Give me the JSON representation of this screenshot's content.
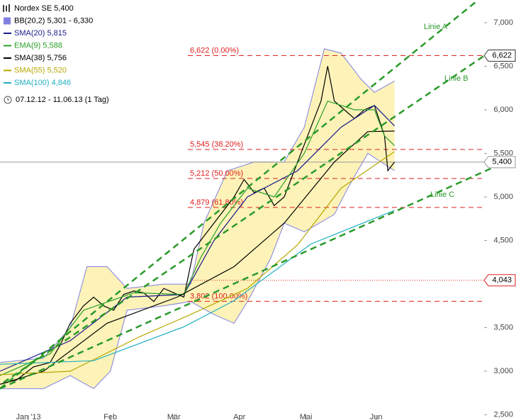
{
  "chart_data": {
    "type": "stock",
    "xlim": [
      0,
      145
    ],
    "ylim": [
      2440,
      7260
    ],
    "xticks": [
      {
        "value": 8.5,
        "label": "Jan '13"
      },
      {
        "value": 33,
        "label": "Feb"
      },
      {
        "value": 52,
        "label": "Mär"
      },
      {
        "value": 71.6,
        "label": "Apr"
      },
      {
        "value": 91.5,
        "label": "Mai"
      },
      {
        "value": 112.5,
        "label": "Jun"
      }
    ],
    "yticks": [
      {
        "value": 7000,
        "label": "7,000"
      },
      {
        "value": 6500,
        "label": "6,500"
      },
      {
        "value": 6000,
        "label": "6,000"
      },
      {
        "value": 5500,
        "label": "5,500"
      },
      {
        "value": 5000,
        "label": "5,000"
      },
      {
        "value": 4500,
        "label": "4,500"
      },
      {
        "value": 3500,
        "label": "3,500"
      },
      {
        "value": 3000,
        "label": "3,000"
      },
      {
        "value": 2500,
        "label": "2,500"
      }
    ],
    "date_range": "07.12.12 - 11.06.13 (1 Tag)",
    "series": [
      {
        "name": "Nordex SE 5,400",
        "kind": "price",
        "color": "#000000",
        "x": [
          0,
          5,
          10,
          15,
          18,
          21,
          25,
          28,
          31,
          34,
          37,
          40,
          43,
          46,
          49,
          52,
          55,
          58,
          61,
          64,
          67,
          70,
          73,
          76,
          79,
          82,
          85,
          88,
          91,
          94,
          96,
          98,
          100,
          103,
          106,
          109,
          112,
          115,
          116,
          118
        ],
        "values": [
          2850,
          2900,
          3050,
          3100,
          3300,
          3550,
          3750,
          3850,
          3750,
          3700,
          3880,
          3920,
          3900,
          3800,
          3950,
          3900,
          3850,
          4400,
          4550,
          4700,
          4850,
          5000,
          5200,
          5050,
          5100,
          4900,
          5000,
          5300,
          5600,
          5900,
          6100,
          6500,
          6100,
          6000,
          5900,
          6000,
          6050,
          5700,
          5300,
          5400
        ]
      },
      {
        "name": "BB(20,2) 5,301 - 6,330",
        "kind": "band",
        "color": "#8080e0",
        "fill": "#fdf3b8",
        "upper_x": [
          0,
          13,
          21,
          26,
          32,
          38,
          49,
          57,
          61,
          68,
          76,
          85,
          91,
          97,
          102,
          108,
          112,
          118
        ],
        "upper": [
          3100,
          3150,
          3500,
          4200,
          4200,
          3950,
          4000,
          4000,
          4700,
          5300,
          5400,
          5400,
          5800,
          6700,
          6650,
          6350,
          6200,
          6330
        ],
        "lower_x": [
          0,
          13,
          21,
          28,
          33,
          38,
          49,
          57,
          64,
          70,
          74,
          81,
          85,
          91,
          100,
          104,
          110,
          118
        ],
        "lower": [
          2800,
          2800,
          2950,
          2800,
          3000,
          3700,
          3750,
          3800,
          3650,
          3550,
          3800,
          4300,
          4700,
          4600,
          4800,
          5100,
          5500,
          5301
        ]
      },
      {
        "name": "SMA(20) 5,815",
        "kind": "line",
        "color": "#1a1a8c",
        "x": [
          0,
          21,
          38,
          55,
          64,
          74,
          89,
          102,
          112,
          118
        ],
        "values": [
          3000,
          3350,
          3850,
          3880,
          4500,
          5000,
          5300,
          5800,
          6050,
          5815
        ]
      },
      {
        "name": "EMA(9) 5,588",
        "kind": "line",
        "color": "#2aa02a",
        "x": [
          0,
          15,
          25,
          40,
          55,
          60,
          66,
          74,
          82,
          91,
          98,
          106,
          112,
          115,
          118
        ],
        "values": [
          2950,
          3200,
          3700,
          3900,
          3880,
          4300,
          4700,
          5100,
          5000,
          5500,
          6100,
          6000,
          6000,
          5700,
          5588
        ]
      },
      {
        "name": "SMA(38) 5,756",
        "kind": "line",
        "color": "#000000",
        "x": [
          0,
          13,
          32,
          53,
          70,
          85,
          100,
          110,
          118
        ],
        "values": [
          2850,
          3000,
          3550,
          3850,
          4200,
          4700,
          5400,
          5750,
          5756
        ]
      },
      {
        "name": "SMA(55) 5,520",
        "kind": "line",
        "color": "#b5a800",
        "x": [
          0,
          21,
          42,
          57,
          74,
          89,
          102,
          118
        ],
        "values": [
          2960,
          3000,
          3400,
          3650,
          3950,
          4450,
          5100,
          5520
        ]
      },
      {
        "name": "SMA(100) 4,846",
        "kind": "line",
        "color": "#20b0c0",
        "x": [
          0,
          28,
          55,
          70,
          93,
          118
        ],
        "values": [
          3080,
          3120,
          3510,
          3810,
          4460,
          4846
        ]
      },
      {
        "name": "Linie A",
        "kind": "trend",
        "color": "#2a9a2a",
        "x": [
          0,
          143
        ],
        "values": [
          2800,
          7260
        ]
      },
      {
        "name": "Linie B",
        "kind": "trend",
        "color": "#2a9a2a",
        "x": [
          1,
          146
        ],
        "values": [
          2870,
          6650
        ]
      },
      {
        "name": "Linie C",
        "kind": "trend",
        "color": "#2a9a2a",
        "x": [
          0,
          154
        ],
        "values": [
          2800,
          5450
        ]
      }
    ],
    "fib_levels": [
      {
        "value": 6622,
        "label": "6,622 (0.00%)"
      },
      {
        "value": 5545,
        "label": "5,545 (38.20%)"
      },
      {
        "value": 5212,
        "label": "5,212 (50.00%)"
      },
      {
        "value": 4879,
        "label": "4,879 (61.80%)"
      },
      {
        "value": 3802,
        "label": "3,802 (100.00%)"
      }
    ],
    "fib_color": "#e02020",
    "price_tags": [
      {
        "value": 6622,
        "label": "6,622",
        "color": "#333333"
      },
      {
        "value": 5400,
        "label": "5,400",
        "color": "#999999",
        "line": "solid"
      },
      {
        "value": 4043,
        "label": "4,043",
        "color": "#e02020",
        "line": "dotted"
      }
    ]
  }
}
